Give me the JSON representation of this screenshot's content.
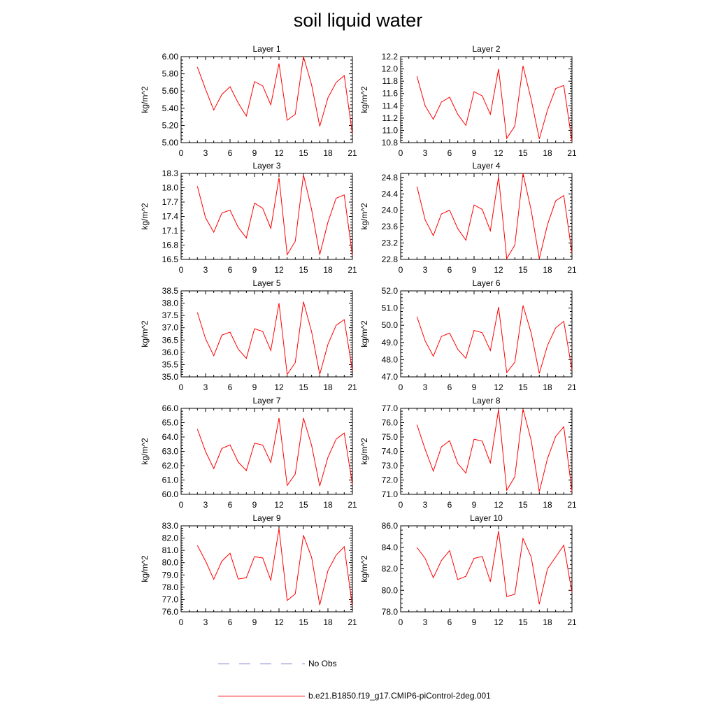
{
  "title": "soil liquid water",
  "colors": {
    "model_line": "#ff0000",
    "obs_line": "#7777cc",
    "axis": "#000000"
  },
  "legend": {
    "obs_label": "No Obs",
    "model_label": "b.e21.B1850.f19_g17.CMIP6-piControl-2deg.001"
  },
  "chart_data": [
    {
      "type": "line",
      "title": "Layer 1",
      "ylabel": "kg/m^2",
      "xlim": [
        0,
        21
      ],
      "ylim": [
        5.0,
        6.0
      ],
      "xticks": [
        "0",
        "3",
        "6",
        "9",
        "12",
        "15",
        "18",
        "21"
      ],
      "xtick_values": [
        0,
        3,
        6,
        9,
        12,
        15,
        18,
        21
      ],
      "yticks": [
        "5.00",
        "5.20",
        "5.40",
        "5.60",
        "5.80",
        "6.00"
      ],
      "ytick_values": [
        5.0,
        5.2,
        5.4,
        5.6,
        5.8,
        6.0
      ],
      "x": [
        2,
        3,
        4,
        5,
        6,
        7,
        8,
        9,
        10,
        11,
        12,
        13,
        14,
        15,
        16,
        17,
        18,
        19,
        20,
        21
      ],
      "series": [
        {
          "name": "b.e21.B1850.f19_g17.CMIP6-piControl-2deg.001",
          "values": [
            5.88,
            5.62,
            5.38,
            5.56,
            5.65,
            5.46,
            5.31,
            5.71,
            5.66,
            5.44,
            5.92,
            5.26,
            5.33,
            6.0,
            5.67,
            5.19,
            5.52,
            5.7,
            5.78,
            5.1
          ]
        }
      ]
    },
    {
      "type": "line",
      "title": "Layer 2",
      "ylabel": "kg/m^2",
      "xlim": [
        0,
        21
      ],
      "ylim": [
        10.8,
        12.2
      ],
      "xticks": [
        "0",
        "3",
        "6",
        "9",
        "12",
        "15",
        "18",
        "21"
      ],
      "xtick_values": [
        0,
        3,
        6,
        9,
        12,
        15,
        18,
        21
      ],
      "yticks": [
        "10.8",
        "11.0",
        "11.2",
        "11.4",
        "11.6",
        "11.8",
        "12.0",
        "12.2"
      ],
      "ytick_values": [
        10.8,
        11.0,
        11.2,
        11.4,
        11.6,
        11.8,
        12.0,
        12.2
      ],
      "x": [
        2,
        3,
        4,
        5,
        6,
        7,
        8,
        9,
        10,
        11,
        12,
        13,
        14,
        15,
        16,
        17,
        18,
        19,
        20,
        21
      ],
      "series": [
        {
          "name": "b.e21.B1850.f19_g17.CMIP6-piControl-2deg.001",
          "values": [
            11.88,
            11.4,
            11.18,
            11.46,
            11.54,
            11.26,
            11.08,
            11.63,
            11.56,
            11.26,
            12.0,
            10.87,
            11.07,
            12.05,
            11.5,
            10.86,
            11.33,
            11.68,
            11.73,
            10.82
          ]
        }
      ]
    },
    {
      "type": "line",
      "title": "Layer 3",
      "ylabel": "kg/m^2",
      "xlim": [
        0,
        21
      ],
      "ylim": [
        16.5,
        18.3
      ],
      "xticks": [
        "0",
        "3",
        "6",
        "9",
        "12",
        "15",
        "18",
        "21"
      ],
      "xtick_values": [
        0,
        3,
        6,
        9,
        12,
        15,
        18,
        21
      ],
      "yticks": [
        "16.5",
        "16.8",
        "17.1",
        "17.4",
        "17.7",
        "18.0",
        "18.3"
      ],
      "ytick_values": [
        16.5,
        16.8,
        17.1,
        17.4,
        17.7,
        18.0,
        18.3
      ],
      "x": [
        2,
        3,
        4,
        5,
        6,
        7,
        8,
        9,
        10,
        11,
        12,
        13,
        14,
        15,
        16,
        17,
        18,
        19,
        20,
        21
      ],
      "series": [
        {
          "name": "b.e21.B1850.f19_g17.CMIP6-piControl-2deg.001",
          "values": [
            18.03,
            17.37,
            17.07,
            17.47,
            17.53,
            17.17,
            16.95,
            17.68,
            17.57,
            17.15,
            18.21,
            16.6,
            16.88,
            18.27,
            17.54,
            16.6,
            17.28,
            17.78,
            17.85,
            16.58
          ]
        }
      ]
    },
    {
      "type": "line",
      "title": "Layer 4",
      "ylabel": "kg/m^2",
      "xlim": [
        0,
        21
      ],
      "ylim": [
        22.8,
        24.9
      ],
      "xticks": [
        "0",
        "3",
        "6",
        "9",
        "12",
        "15",
        "18",
        "21"
      ],
      "xtick_values": [
        0,
        3,
        6,
        9,
        12,
        15,
        18,
        21
      ],
      "yticks": [
        "22.8",
        "23.2",
        "23.6",
        "24.0",
        "24.4",
        "24.8"
      ],
      "ytick_values": [
        22.8,
        23.2,
        23.6,
        24.0,
        24.4,
        24.8
      ],
      "x": [
        2,
        3,
        4,
        5,
        6,
        7,
        8,
        9,
        10,
        11,
        12,
        13,
        14,
        15,
        16,
        17,
        18,
        19,
        20,
        21
      ],
      "series": [
        {
          "name": "b.e21.B1850.f19_g17.CMIP6-piControl-2deg.001",
          "values": [
            24.58,
            23.77,
            23.38,
            23.91,
            24.0,
            23.55,
            23.27,
            24.13,
            24.02,
            23.5,
            24.82,
            22.82,
            23.15,
            24.9,
            24.0,
            22.82,
            23.65,
            24.23,
            24.36,
            22.95
          ]
        }
      ]
    },
    {
      "type": "line",
      "title": "Layer 5",
      "ylabel": "kg/m^2",
      "xlim": [
        0,
        21
      ],
      "ylim": [
        35.0,
        38.5
      ],
      "xticks": [
        "0",
        "3",
        "6",
        "9",
        "12",
        "15",
        "18",
        "21"
      ],
      "xtick_values": [
        0,
        3,
        6,
        9,
        12,
        15,
        18,
        21
      ],
      "yticks": [
        "35.0",
        "35.5",
        "36.0",
        "36.5",
        "37.0",
        "37.5",
        "38.0",
        "38.5"
      ],
      "ytick_values": [
        35.0,
        35.5,
        36.0,
        36.5,
        37.0,
        37.5,
        38.0,
        38.5
      ],
      "x": [
        2,
        3,
        4,
        5,
        6,
        7,
        8,
        9,
        10,
        11,
        12,
        13,
        14,
        15,
        16,
        17,
        18,
        19,
        20,
        21
      ],
      "series": [
        {
          "name": "b.e21.B1850.f19_g17.CMIP6-piControl-2deg.001",
          "values": [
            37.62,
            36.55,
            35.86,
            36.7,
            36.82,
            36.13,
            35.75,
            36.96,
            36.85,
            36.07,
            38.0,
            35.1,
            35.58,
            38.06,
            36.83,
            35.1,
            36.32,
            37.1,
            37.33,
            35.25
          ]
        }
      ]
    },
    {
      "type": "line",
      "title": "Layer 6",
      "ylabel": "kg/m^2",
      "xlim": [
        0,
        21
      ],
      "ylim": [
        47.0,
        52.0
      ],
      "xticks": [
        "0",
        "3",
        "6",
        "9",
        "12",
        "15",
        "18",
        "21"
      ],
      "xtick_values": [
        0,
        3,
        6,
        9,
        12,
        15,
        18,
        21
      ],
      "yticks": [
        "47.0",
        "48.0",
        "49.0",
        "50.0",
        "51.0",
        "52.0"
      ],
      "ytick_values": [
        47.0,
        48.0,
        49.0,
        50.0,
        51.0,
        52.0
      ],
      "x": [
        2,
        3,
        4,
        5,
        6,
        7,
        8,
        9,
        10,
        11,
        12,
        13,
        14,
        15,
        16,
        17,
        18,
        19,
        20,
        21
      ],
      "series": [
        {
          "name": "b.e21.B1850.f19_g17.CMIP6-piControl-2deg.001",
          "values": [
            50.5,
            49.1,
            48.2,
            49.35,
            49.55,
            48.6,
            48.08,
            49.7,
            49.57,
            48.53,
            51.06,
            47.25,
            47.85,
            51.15,
            49.55,
            47.2,
            48.83,
            49.85,
            50.23,
            47.4
          ]
        }
      ]
    },
    {
      "type": "line",
      "title": "Layer 7",
      "ylabel": "kg/m^2",
      "xlim": [
        0,
        21
      ],
      "ylim": [
        60.0,
        66.0
      ],
      "xticks": [
        "0",
        "3",
        "6",
        "9",
        "12",
        "15",
        "18",
        "21"
      ],
      "xtick_values": [
        0,
        3,
        6,
        9,
        12,
        15,
        18,
        21
      ],
      "yticks": [
        "60.0",
        "61.0",
        "62.0",
        "63.0",
        "64.0",
        "65.0",
        "66.0"
      ],
      "ytick_values": [
        60.0,
        61.0,
        62.0,
        63.0,
        64.0,
        65.0,
        66.0
      ],
      "x": [
        2,
        3,
        4,
        5,
        6,
        7,
        8,
        9,
        10,
        11,
        12,
        13,
        14,
        15,
        16,
        17,
        18,
        19,
        20,
        21
      ],
      "series": [
        {
          "name": "b.e21.B1850.f19_g17.CMIP6-piControl-2deg.001",
          "values": [
            64.55,
            62.98,
            61.8,
            63.2,
            63.45,
            62.25,
            61.66,
            63.57,
            63.44,
            62.22,
            65.32,
            60.62,
            61.42,
            65.32,
            63.41,
            60.58,
            62.58,
            63.85,
            64.28,
            60.7
          ]
        }
      ]
    },
    {
      "type": "line",
      "title": "Layer 8",
      "ylabel": "kg/m^2",
      "xlim": [
        0,
        21
      ],
      "ylim": [
        71.0,
        77.0
      ],
      "xticks": [
        "0",
        "3",
        "6",
        "9",
        "12",
        "15",
        "18",
        "21"
      ],
      "xtick_values": [
        0,
        3,
        6,
        9,
        12,
        15,
        18,
        21
      ],
      "yticks": [
        "71.0",
        "72.0",
        "73.0",
        "74.0",
        "75.0",
        "76.0",
        "77.0"
      ],
      "ytick_values": [
        71.0,
        72.0,
        73.0,
        74.0,
        75.0,
        76.0,
        77.0
      ],
      "x": [
        2,
        3,
        4,
        5,
        6,
        7,
        8,
        9,
        10,
        11,
        12,
        13,
        14,
        15,
        16,
        17,
        18,
        19,
        20,
        21
      ],
      "series": [
        {
          "name": "b.e21.B1850.f19_g17.CMIP6-piControl-2deg.001",
          "values": [
            75.86,
            74.15,
            72.62,
            74.31,
            74.74,
            73.15,
            72.48,
            74.85,
            74.71,
            73.19,
            76.92,
            71.28,
            72.23,
            76.95,
            74.76,
            71.18,
            73.5,
            75.04,
            75.72,
            71.2
          ]
        }
      ]
    },
    {
      "type": "line",
      "title": "Layer 9",
      "ylabel": "kg/m^2",
      "xlim": [
        0,
        21
      ],
      "ylim": [
        76.0,
        83.0
      ],
      "xticks": [
        "0",
        "3",
        "6",
        "9",
        "12",
        "15",
        "18",
        "21"
      ],
      "xtick_values": [
        0,
        3,
        6,
        9,
        12,
        15,
        18,
        21
      ],
      "yticks": [
        "76.0",
        "77.0",
        "78.0",
        "79.0",
        "80.0",
        "81.0",
        "82.0",
        "83.0"
      ],
      "ytick_values": [
        76.0,
        77.0,
        78.0,
        79.0,
        80.0,
        81.0,
        82.0,
        83.0
      ],
      "x": [
        2,
        3,
        4,
        5,
        6,
        7,
        8,
        9,
        10,
        11,
        12,
        13,
        14,
        15,
        16,
        17,
        18,
        19,
        20,
        21
      ],
      "series": [
        {
          "name": "b.e21.B1850.f19_g17.CMIP6-piControl-2deg.001",
          "values": [
            81.4,
            80.13,
            78.65,
            80.12,
            80.77,
            78.67,
            78.77,
            80.49,
            80.38,
            78.57,
            82.77,
            76.92,
            77.47,
            82.24,
            80.42,
            76.55,
            79.36,
            80.61,
            81.3,
            76.45
          ]
        }
      ]
    },
    {
      "type": "line",
      "title": "Layer 10",
      "ylabel": "kg/m^2",
      "xlim": [
        0,
        21
      ],
      "ylim": [
        78.0,
        86.0
      ],
      "xticks": [
        "0",
        "3",
        "6",
        "9",
        "12",
        "15",
        "18",
        "21"
      ],
      "xtick_values": [
        0,
        3,
        6,
        9,
        12,
        15,
        18,
        21
      ],
      "yticks": [
        "78.0",
        "80.0",
        "82.0",
        "84.0",
        "86.0"
      ],
      "ytick_values": [
        78.0,
        80.0,
        82.0,
        84.0,
        86.0
      ],
      "x": [
        2,
        3,
        4,
        5,
        6,
        7,
        8,
        9,
        10,
        11,
        12,
        13,
        14,
        15,
        16,
        17,
        18,
        19,
        20,
        21
      ],
      "series": [
        {
          "name": "b.e21.B1850.f19_g17.CMIP6-piControl-2deg.001",
          "values": [
            83.98,
            82.97,
            81.17,
            82.77,
            83.7,
            80.99,
            81.31,
            82.97,
            83.15,
            80.8,
            85.52,
            79.42,
            79.64,
            84.82,
            83.1,
            78.7,
            82.0,
            83.1,
            84.2,
            79.8
          ]
        }
      ]
    }
  ]
}
